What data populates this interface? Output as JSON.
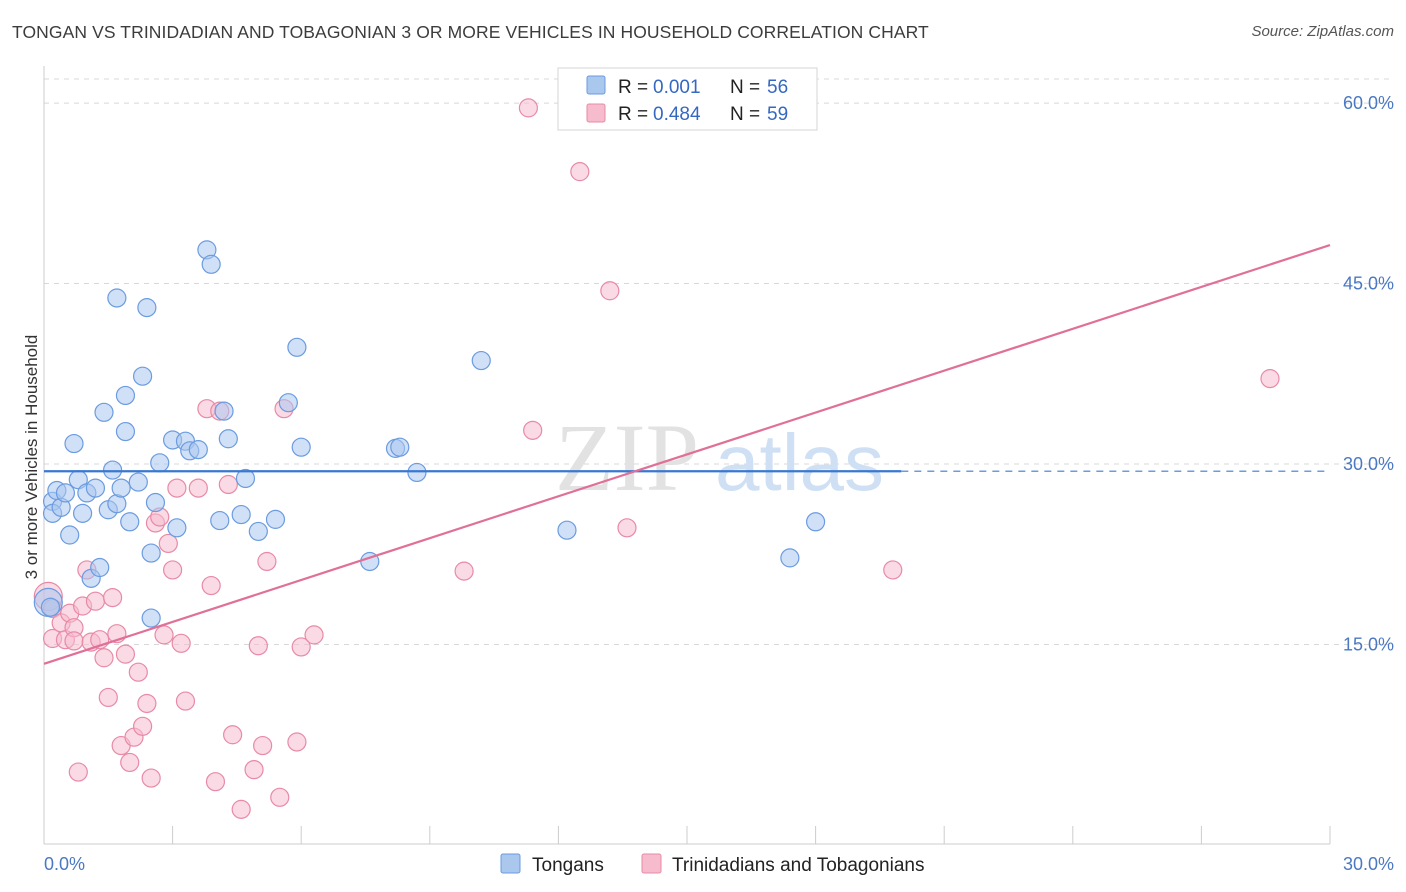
{
  "header": {
    "title": "TONGAN VS TRINIDADIAN AND TOBAGONIAN 3 OR MORE VEHICLES IN HOUSEHOLD CORRELATION CHART",
    "source": "Source: ZipAtlas.com"
  },
  "watermark": {
    "zip": "ZIP",
    "atlas": "atlas"
  },
  "legend": {
    "rows": [
      {
        "r_label": "R =",
        "r_value": "0.001",
        "n_label": "N =",
        "n_value": "56"
      },
      {
        "r_label": "R =",
        "r_value": "0.484",
        "n_label": "N =",
        "n_value": "59"
      }
    ]
  },
  "bottom_legend": {
    "series1": "Tongans",
    "series2": "Trinidadians and Tobagonians"
  },
  "colors": {
    "series1_fill": "#aac7ee",
    "series1_stroke": "#6b9be0",
    "series1_line": "#3a78d0",
    "series2_fill": "#f6bccd",
    "series2_stroke": "#e88aa6",
    "series2_line": "#e07098",
    "grid": "#d8d8d8",
    "tick_text": "#4a78c2"
  },
  "chart_data": {
    "type": "scatter",
    "title": "TONGAN VS TRINIDADIAN AND TOBAGONIAN 3 OR MORE VEHICLES IN HOUSEHOLD CORRELATION CHART",
    "xlabel": "",
    "ylabel": "3 or more Vehicles in Household",
    "xlim": [
      0,
      30
    ],
    "ylim": [
      0,
      62
    ],
    "x_tick_labels": [
      "0.0%",
      "30.0%"
    ],
    "y_ticks": [
      15,
      30,
      45,
      60
    ],
    "y_tick_labels": [
      "15.0%",
      "30.0%",
      "45.0%",
      "60.0%"
    ],
    "series": [
      {
        "name": "Tongans",
        "r": 0.001,
        "n": 56,
        "trend": {
          "x0": 0,
          "y0": 29.4,
          "x1": 20,
          "y1": 29.4,
          "dashed_to": 30
        },
        "points": [
          [
            0.1,
            18.5
          ],
          [
            0.2,
            26.9
          ],
          [
            0.2,
            25.9
          ],
          [
            0.3,
            27.8
          ],
          [
            0.4,
            26.4
          ],
          [
            0.5,
            27.6
          ],
          [
            0.6,
            24.1
          ],
          [
            0.7,
            31.7
          ],
          [
            0.8,
            28.7
          ],
          [
            0.9,
            25.9
          ],
          [
            1.0,
            27.6
          ],
          [
            1.1,
            20.5
          ],
          [
            1.2,
            28.0
          ],
          [
            1.3,
            21.4
          ],
          [
            1.4,
            34.3
          ],
          [
            1.5,
            26.2
          ],
          [
            1.6,
            29.5
          ],
          [
            1.7,
            26.7
          ],
          [
            1.7,
            43.8
          ],
          [
            1.8,
            28.0
          ],
          [
            1.9,
            32.7
          ],
          [
            1.9,
            35.7
          ],
          [
            2.0,
            25.2
          ],
          [
            2.2,
            28.5
          ],
          [
            2.3,
            37.3
          ],
          [
            2.4,
            43.0
          ],
          [
            2.5,
            22.6
          ],
          [
            2.5,
            17.2
          ],
          [
            2.6,
            26.8
          ],
          [
            2.7,
            30.1
          ],
          [
            3.0,
            32.0
          ],
          [
            3.1,
            24.7
          ],
          [
            3.3,
            31.9
          ],
          [
            3.4,
            31.1
          ],
          [
            3.6,
            31.2
          ],
          [
            3.8,
            47.8
          ],
          [
            3.9,
            46.6
          ],
          [
            4.1,
            25.3
          ],
          [
            4.2,
            34.4
          ],
          [
            4.3,
            32.1
          ],
          [
            4.6,
            25.8
          ],
          [
            4.7,
            28.8
          ],
          [
            5.0,
            24.4
          ],
          [
            5.4,
            25.4
          ],
          [
            5.7,
            35.1
          ],
          [
            5.9,
            39.7
          ],
          [
            6.0,
            31.4
          ],
          [
            7.6,
            21.9
          ],
          [
            8.2,
            31.3
          ],
          [
            8.3,
            31.4
          ],
          [
            8.7,
            29.3
          ],
          [
            10.2,
            38.6
          ],
          [
            12.2,
            24.5
          ],
          [
            17.4,
            22.2
          ],
          [
            18.0,
            25.2
          ],
          [
            0.15,
            18.1
          ]
        ]
      },
      {
        "name": "Trinidadians and Tobagonians",
        "r": 0.484,
        "n": 59,
        "trend": {
          "x0": 0,
          "y0": 13.4,
          "x1": 30,
          "y1": 48.2
        },
        "points": [
          [
            0.1,
            19.0
          ],
          [
            0.2,
            18.0
          ],
          [
            0.2,
            15.5
          ],
          [
            0.4,
            16.8
          ],
          [
            0.5,
            15.4
          ],
          [
            0.6,
            17.6
          ],
          [
            0.7,
            16.4
          ],
          [
            0.7,
            15.3
          ],
          [
            0.8,
            4.4
          ],
          [
            0.9,
            18.2
          ],
          [
            1.0,
            21.2
          ],
          [
            1.1,
            15.2
          ],
          [
            1.2,
            18.6
          ],
          [
            1.3,
            15.4
          ],
          [
            1.4,
            13.9
          ],
          [
            1.5,
            10.6
          ],
          [
            1.6,
            18.9
          ],
          [
            1.7,
            15.9
          ],
          [
            1.8,
            6.6
          ],
          [
            1.9,
            14.2
          ],
          [
            2.0,
            5.2
          ],
          [
            2.1,
            7.3
          ],
          [
            2.2,
            12.7
          ],
          [
            2.3,
            8.2
          ],
          [
            2.4,
            10.1
          ],
          [
            2.5,
            3.9
          ],
          [
            2.6,
            25.1
          ],
          [
            2.7,
            25.6
          ],
          [
            2.8,
            15.8
          ],
          [
            2.9,
            23.4
          ],
          [
            3.0,
            21.2
          ],
          [
            3.1,
            28.0
          ],
          [
            3.2,
            15.1
          ],
          [
            3.3,
            10.3
          ],
          [
            3.6,
            28.0
          ],
          [
            3.8,
            34.6
          ],
          [
            3.9,
            19.9
          ],
          [
            4.0,
            3.6
          ],
          [
            4.1,
            34.4
          ],
          [
            4.3,
            28.3
          ],
          [
            4.4,
            7.5
          ],
          [
            4.6,
            1.3
          ],
          [
            4.9,
            4.6
          ],
          [
            5.0,
            14.9
          ],
          [
            5.1,
            6.6
          ],
          [
            5.2,
            21.9
          ],
          [
            5.5,
            2.3
          ],
          [
            5.6,
            34.6
          ],
          [
            5.9,
            6.9
          ],
          [
            6.0,
            14.8
          ],
          [
            6.3,
            15.8
          ],
          [
            9.8,
            21.1
          ],
          [
            11.4,
            32.8
          ],
          [
            11.3,
            59.6
          ],
          [
            12.5,
            54.3
          ],
          [
            13.2,
            44.4
          ],
          [
            13.6,
            24.7
          ],
          [
            19.8,
            21.2
          ],
          [
            28.6,
            37.1
          ]
        ]
      }
    ]
  }
}
